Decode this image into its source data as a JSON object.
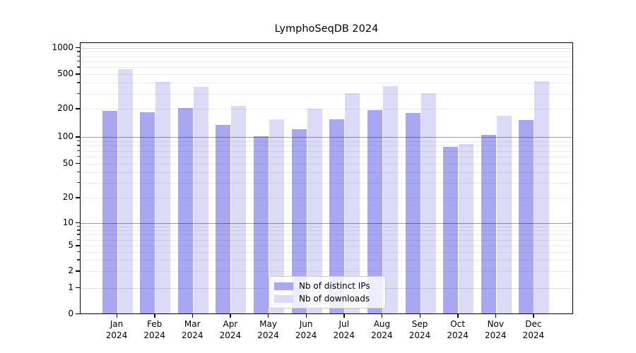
{
  "figure": {
    "title": "LymphoSeqDB 2024"
  },
  "chart_data": {
    "type": "bar",
    "title": "LymphoSeqDB 2024",
    "xlabel": "",
    "ylabel": "",
    "yscale": "symlog",
    "ylim": [
      0,
      1000
    ],
    "grid": true,
    "legend_position": "lower center",
    "y_ticks": [
      0,
      1,
      2,
      5,
      10,
      20,
      50,
      100,
      200,
      500,
      1000
    ],
    "categories": [
      "Jan 2024",
      "Feb 2024",
      "Mar 2024",
      "Apr 2024",
      "May 2024",
      "Jun 2024",
      "Jul 2024",
      "Aug 2024",
      "Sep 2024",
      "Oct 2024",
      "Nov 2024",
      "Dec 2024"
    ],
    "series": [
      {
        "name": "Nb of distinct IPs",
        "color": "#a8a8f2",
        "values": [
          188,
          182,
          200,
          133,
          100,
          120,
          152,
          192,
          178,
          76,
          105,
          150
        ]
      },
      {
        "name": "Nb of downloads",
        "color": "#dbdbf8",
        "values": [
          560,
          400,
          350,
          213,
          153,
          196,
          300,
          362,
          298,
          82,
          167,
          408
        ]
      }
    ]
  }
}
